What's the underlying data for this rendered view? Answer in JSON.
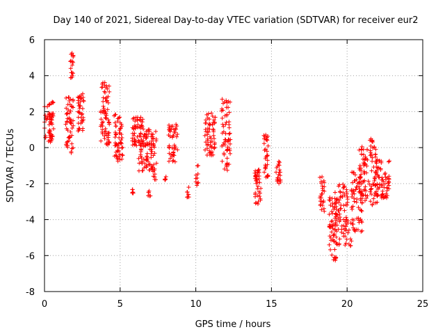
{
  "chart_data": {
    "type": "scatter",
    "title": "Day 140 of 2021, Sidereal Day-to-day VTEC variation (SDTVAR) for receiver eur2",
    "xlabel": "GPS time / hours",
    "ylabel": "SDTVAR / TECUs",
    "xlim": [
      0,
      25
    ],
    "ylim": [
      -8,
      6
    ],
    "xticks": [
      "0",
      "5",
      "10",
      "15",
      "20",
      "25"
    ],
    "yticks": [
      "-8",
      "-6",
      "-4",
      "-2",
      "0",
      "2",
      "4",
      "6"
    ],
    "grid": true,
    "marker": "plus",
    "color": "#ff0000",
    "clusters": [
      [
        0.0,
        0.5,
        0.3,
        2.3,
        0.5
      ],
      [
        0.3,
        0.6,
        0.4,
        2.6,
        0.4
      ],
      [
        1.4,
        1.9,
        -0.3,
        2.8,
        0.8
      ],
      [
        1.7,
        1.9,
        3.8,
        5.3,
        0.5
      ],
      [
        2.2,
        2.6,
        0.8,
        3.0,
        0.7
      ],
      [
        3.7,
        4.3,
        0.1,
        3.7,
        0.9
      ],
      [
        4.6,
        5.2,
        -0.8,
        1.9,
        0.8
      ],
      [
        5.8,
        6.5,
        0.1,
        1.7,
        0.7
      ],
      [
        6.2,
        7.0,
        -1.3,
        1.1,
        0.7
      ],
      [
        5.8,
        6.0,
        -2.6,
        -2.3,
        0.1
      ],
      [
        6.8,
        7.0,
        -2.7,
        -2.4,
        0.1
      ],
      [
        7.0,
        7.4,
        -1.8,
        0.9,
        0.6
      ],
      [
        8.2,
        8.8,
        -0.8,
        1.3,
        0.6
      ],
      [
        7.9,
        8.1,
        -1.9,
        -1.6,
        0.1
      ],
      [
        9.4,
        9.6,
        -2.9,
        -2.1,
        0.1
      ],
      [
        10.0,
        10.2,
        -2.1,
        -0.8,
        0.1
      ],
      [
        10.6,
        11.3,
        -0.5,
        2.0,
        0.7
      ],
      [
        11.7,
        12.3,
        -1.3,
        2.7,
        0.7
      ],
      [
        13.9,
        14.3,
        -3.2,
        -1.1,
        0.7
      ],
      [
        14.5,
        14.8,
        -1.7,
        0.8,
        0.7
      ],
      [
        15.3,
        15.6,
        -2.0,
        -0.6,
        0.5
      ],
      [
        18.2,
        18.5,
        -3.6,
        -1.6,
        0.5
      ],
      [
        18.8,
        19.3,
        -6.3,
        -2.7,
        0.8
      ],
      [
        19.2,
        20.3,
        -5.5,
        -2.0,
        0.7
      ],
      [
        20.3,
        21.0,
        -4.7,
        -1.0,
        0.7
      ],
      [
        20.8,
        22.0,
        -3.2,
        0.1,
        0.7
      ],
      [
        21.8,
        22.8,
        -2.8,
        -0.7,
        0.7
      ],
      [
        21.5,
        21.7,
        0.3,
        0.6,
        0.1
      ]
    ]
  }
}
